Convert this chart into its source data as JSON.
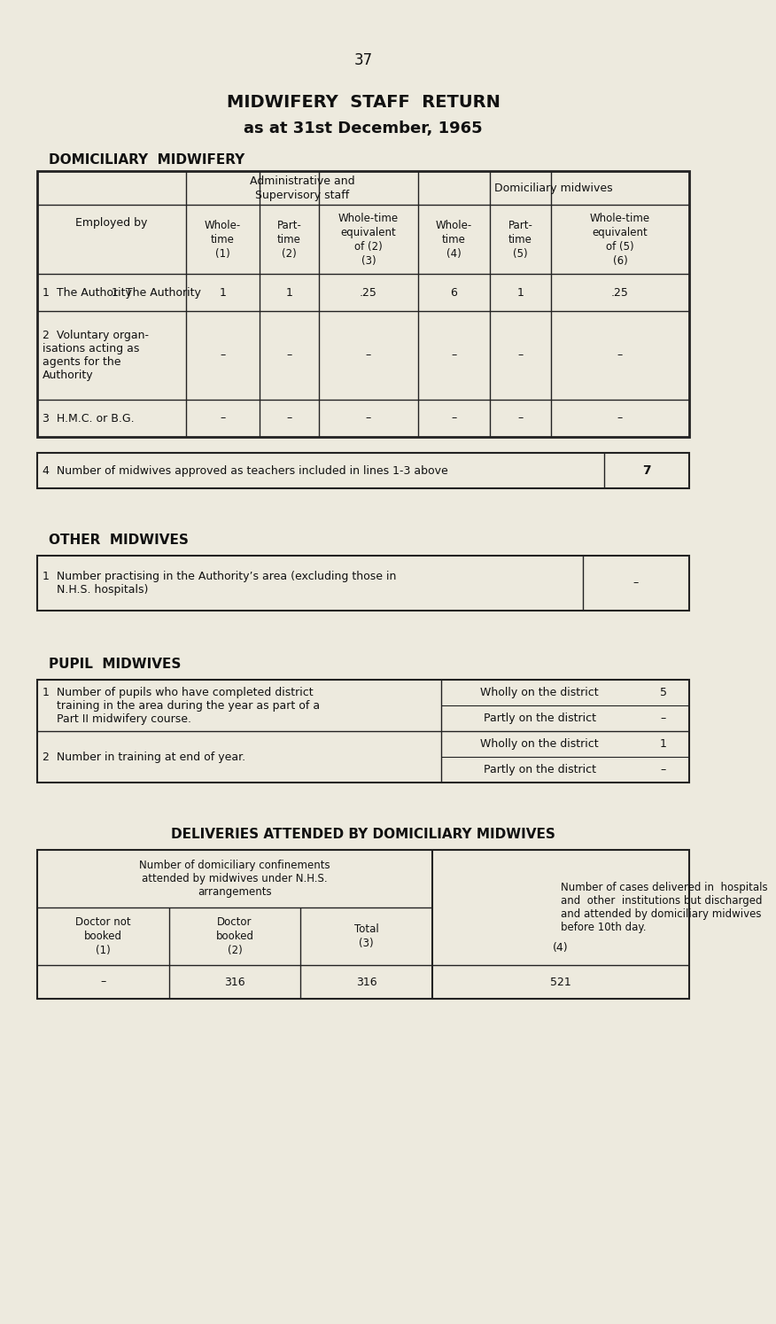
{
  "page_number": "37",
  "title_line1": "MIDWIFERY  STAFF  RETURN",
  "title_line2": "as at 31st December, 1965",
  "section1_title": "DOMICILIARY  MIDWIFERY",
  "bg_color": "#edeade",
  "table1_header_row2": [
    "Whole-\ntime\n(1)",
    "Part-\ntime\n(2)",
    "Whole-time\nequivalent\nof (2)\n(3)",
    "Whole-\ntime\n(4)",
    "Part-\ntime\n(5)",
    "Whole-time\nequivalent\nof (5)\n(6)"
  ],
  "table1_rows": [
    [
      "1  The Authority",
      "1",
      "1",
      ".25",
      "6",
      "1",
      ".25"
    ],
    [
      "2  Voluntary organ-\nisations acting as\nagents for the\nAuthority",
      "–",
      "–",
      "–",
      "–",
      "–",
      "–"
    ],
    [
      "3  H.M.C. or B.G.",
      "–",
      "–",
      "–",
      "–",
      "–",
      "–"
    ]
  ],
  "table1_row4_text": "4  Number of midwives approved as teachers included in lines 1-3 above",
  "table1_row4_value": "7",
  "section2_title": "OTHER  MIDWIVES",
  "table2_row1_text": "1  Number practising in the Authority’s area (excluding those in\n    N.H.S. hospitals)",
  "table2_row1_value": "–",
  "section3_title": "PUPIL  MIDWIVES",
  "table3_row1_text": "1  Number of pupils who have completed district\n    training in the area during the year as part of a\n    Part II midwifery course.",
  "table3_row1_sub1": "Wholly on the district",
  "table3_row1_val1": "5",
  "table3_row1_sub2": "Partly on the district",
  "table3_row1_val2": "–",
  "table3_row2_text": "2  Number in training at end of year.",
  "table3_row2_sub1": "Wholly on the district",
  "table3_row2_val1": "1",
  "table3_row2_sub2": "Partly on the district",
  "table3_row2_val2": "–",
  "section4_title": "DELIVERIES ATTENDED BY DOMICILIARY MIDWIVES",
  "table4_header_left": "Number of domiciliary confinements\nattended by midwives under N.H.S.\narrangements",
  "table4_header_right": "Number of cases delivered in  hospitals\nand  other  institutions but discharged\nand attended by domiciliary midwives\nbefore 10th day.",
  "table4_col_headers": [
    "Doctor not\nbooked\n(1)",
    "Doctor\nbooked\n(2)",
    "Total\n(3)"
  ],
  "table4_data": [
    "–",
    "316",
    "316"
  ],
  "table4_right_label": "(4)",
  "table4_right_value": "521"
}
